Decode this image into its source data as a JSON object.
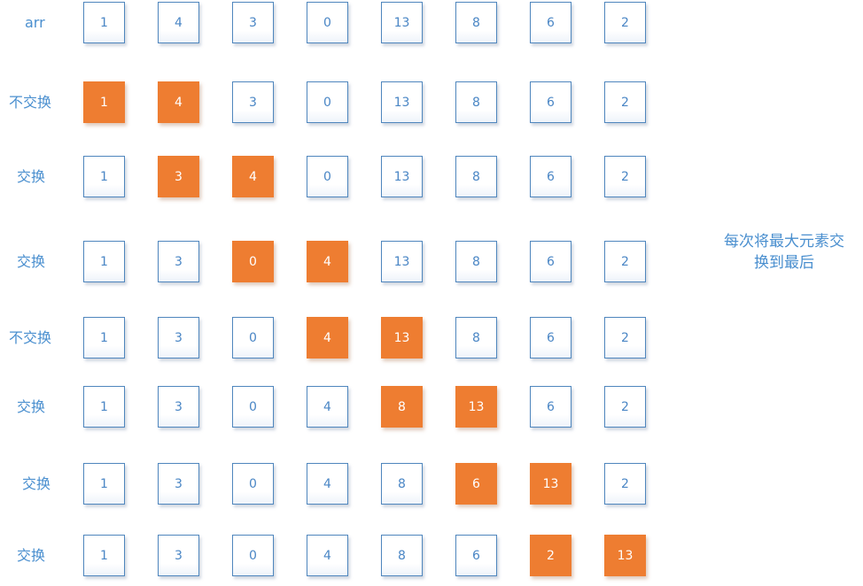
{
  "rows": [
    {
      "label": "arr",
      "values": [
        "1",
        "4",
        "3",
        "0",
        "13",
        "8",
        "6",
        "2"
      ],
      "highlight": []
    },
    {
      "label": "不交换",
      "values": [
        "1",
        "4",
        "3",
        "0",
        "13",
        "8",
        "6",
        "2"
      ],
      "highlight": [
        0,
        1
      ]
    },
    {
      "label": "交换",
      "values": [
        "1",
        "3",
        "4",
        "0",
        "13",
        "8",
        "6",
        "2"
      ],
      "highlight": [
        1,
        2
      ]
    },
    {
      "label": "交换",
      "values": [
        "1",
        "3",
        "0",
        "4",
        "13",
        "8",
        "6",
        "2"
      ],
      "highlight": [
        2,
        3
      ]
    },
    {
      "label": "不交换",
      "values": [
        "1",
        "3",
        "0",
        "4",
        "13",
        "8",
        "6",
        "2"
      ],
      "highlight": [
        3,
        4
      ]
    },
    {
      "label": "交换",
      "values": [
        "1",
        "3",
        "0",
        "4",
        "8",
        "13",
        "6",
        "2"
      ],
      "highlight": [
        4,
        5
      ]
    },
    {
      "label": "交换",
      "values": [
        "1",
        "3",
        "0",
        "4",
        "8",
        "6",
        "13",
        "2"
      ],
      "highlight": [
        5,
        6
      ]
    },
    {
      "label": "交换",
      "values": [
        "1",
        "3",
        "0",
        "4",
        "8",
        "6",
        "2",
        "13"
      ],
      "highlight": [
        6,
        7
      ]
    }
  ],
  "note": {
    "line1": "每次将最大元素交",
    "line2": "换到最后"
  },
  "colors": {
    "highlight": "#ee7d31",
    "text": "#4a8fcf",
    "border": "#4f86bd"
  }
}
